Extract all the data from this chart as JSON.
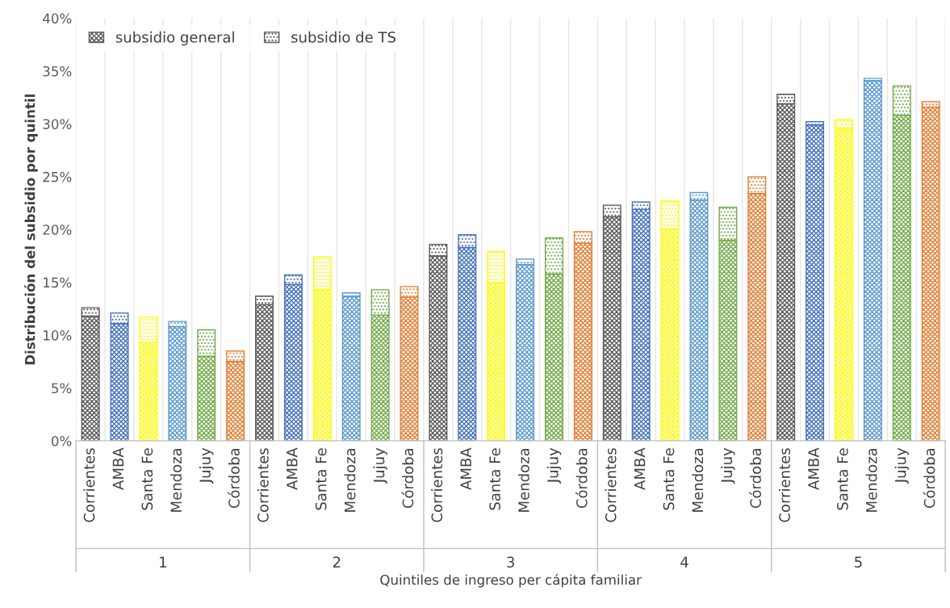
{
  "chart_data": {
    "type": "bar",
    "stacked": true,
    "xlabel": "Quintiles de ingreso per cápita familiar",
    "ylabel": "Distribución del subsidio por quintil",
    "categories": [
      "Corrientes",
      "AMBA",
      "Santa Fe",
      "Mendoza",
      "Jujuy",
      "Córdoba",
      "Corrientes",
      "AMBA",
      "Santa Fe",
      "Mendoza",
      "Jujuy",
      "Córdoba",
      "Corrientes",
      "AMBA",
      "Santa Fe",
      "Mendoza",
      "Jujuy",
      "Córdoba",
      "Corrientes",
      "AMBA",
      "Santa Fe",
      "Mendoza",
      "Jujuy",
      "Córdoba",
      "Corrientes",
      "AMBA",
      "Santa Fe",
      "Mendoza",
      "Jujuy",
      "Córdoba"
    ],
    "annotations": [
      "1",
      "2",
      "3",
      "4",
      "5"
    ],
    "series": [
      {
        "name": "subsidio general",
        "color": "#595959",
        "colors": [
          "#595959",
          "#4472c4",
          "#ffff00",
          "#5b9bd5",
          "#70ad47",
          "#ed7d31",
          "#595959",
          "#4472c4",
          "#ffff00",
          "#5b9bd5",
          "#70ad47",
          "#ed7d31",
          "#595959",
          "#4472c4",
          "#ffff00",
          "#5b9bd5",
          "#70ad47",
          "#ed7d31",
          "#595959",
          "#4472c4",
          "#ffff00",
          "#5b9bd5",
          "#70ad47",
          "#ed7d31",
          "#595959",
          "#4472c4",
          "#ffff00",
          "#5b9bd5",
          "#70ad47",
          "#ed7d31"
        ],
        "values": [
          11.8,
          11.1,
          9.3,
          10.8,
          8.0,
          7.5,
          12.9,
          14.8,
          14.3,
          13.7,
          11.9,
          13.6,
          17.5,
          18.3,
          15.0,
          16.7,
          15.8,
          18.7,
          21.2,
          21.9,
          20.0,
          22.8,
          19.0,
          23.4,
          31.9,
          29.9,
          29.6,
          34.1,
          30.8,
          31.6
        ]
      },
      {
        "name": "subsidio de TS",
        "color": "#595959",
        "colors": [
          "#595959",
          "#4472c4",
          "#ffff00",
          "#5b9bd5",
          "#70ad47",
          "#ed7d31",
          "#595959",
          "#4472c4",
          "#ffff00",
          "#5b9bd5",
          "#70ad47",
          "#ed7d31",
          "#595959",
          "#4472c4",
          "#ffff00",
          "#5b9bd5",
          "#70ad47",
          "#ed7d31",
          "#595959",
          "#4472c4",
          "#ffff00",
          "#5b9bd5",
          "#70ad47",
          "#ed7d31",
          "#595959",
          "#4472c4",
          "#ffff00",
          "#5b9bd5",
          "#70ad47",
          "#ed7d31"
        ],
        "values": [
          0.8,
          1.0,
          2.4,
          0.5,
          2.5,
          1.0,
          0.8,
          0.9,
          3.1,
          0.3,
          2.4,
          1.0,
          1.1,
          1.2,
          2.9,
          0.5,
          3.4,
          1.1,
          1.1,
          0.7,
          2.7,
          0.7,
          3.1,
          1.6,
          0.9,
          0.3,
          0.8,
          0.2,
          2.8,
          0.5
        ]
      }
    ],
    "ylim": [
      0,
      40
    ],
    "yticks": [
      {
        "value": 0,
        "label": "0%"
      },
      {
        "value": 5,
        "label": "5%"
      },
      {
        "value": 10,
        "label": "10%"
      },
      {
        "value": 15,
        "label": "15%"
      },
      {
        "value": 20,
        "label": "20%"
      },
      {
        "value": 25,
        "label": "25%"
      },
      {
        "value": 30,
        "label": "30%"
      },
      {
        "value": 35,
        "label": "35%"
      },
      {
        "value": 40,
        "label": "40%"
      }
    ],
    "legend": "top left"
  }
}
